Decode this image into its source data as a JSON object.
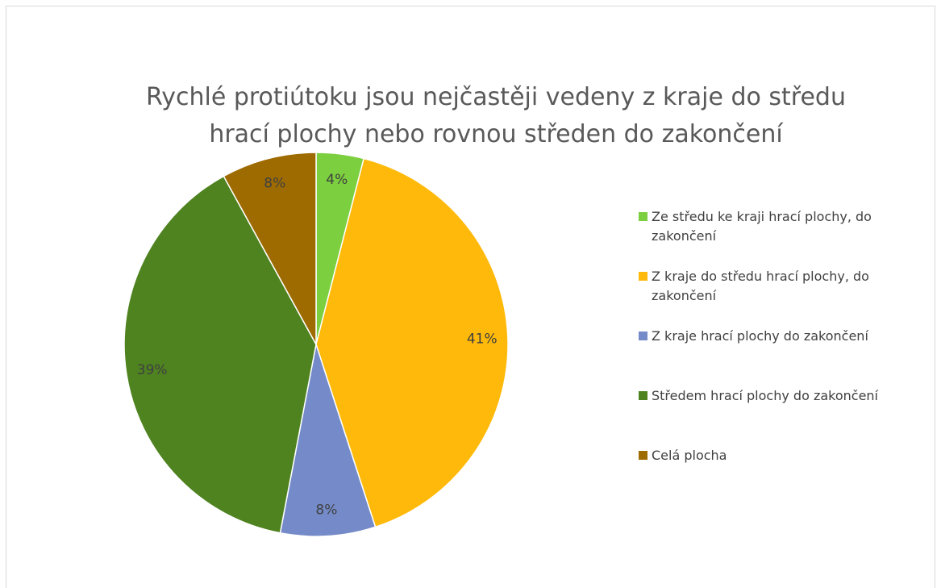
{
  "chart_data": {
    "type": "pie",
    "title": "Rychlé protiútoku jsou nejčastěji vedeny z kraje do středu hrací plochy nebo rovnou středen do zakončení",
    "categories": [
      "Ze středu ke kraji hrací plochy, do zakončení",
      "Z kraje do středu hrací plochy, do zakončení",
      "Z kraje hrací plochy do zakončení",
      "Středem hrací plochy do zakončení",
      "Celá plocha"
    ],
    "values": [
      4,
      41,
      8,
      39,
      8
    ],
    "value_labels": [
      "4%",
      "41%",
      "8%",
      "39%",
      "8%"
    ],
    "colors": [
      "#7ccf3e",
      "#ffb90a",
      "#758bc9",
      "#4e8320",
      "#9e6b00"
    ],
    "legend": "right"
  }
}
